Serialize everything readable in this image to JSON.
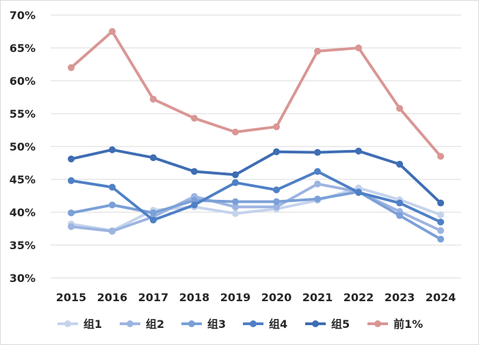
{
  "chart_data": {
    "type": "line",
    "title": "",
    "xlabel": "",
    "ylabel": "",
    "x": [
      "2015",
      "2016",
      "2017",
      "2018",
      "2019",
      "2020",
      "2021",
      "2022",
      "2023",
      "2024"
    ],
    "ylim": [
      0.3,
      0.7
    ],
    "y_ticks": [
      "30%",
      "35%",
      "40%",
      "45%",
      "50%",
      "55%",
      "60%",
      "65%",
      "70%"
    ],
    "grid": true,
    "legend_position": "bottom",
    "series": [
      {
        "name": "组1",
        "color": "#c5d3ec",
        "values": [
          0.382,
          0.372,
          0.403,
          0.408,
          0.398,
          0.405,
          0.418,
          0.437,
          0.419,
          0.396
        ]
      },
      {
        "name": "组2",
        "color": "#9db4e1",
        "values": [
          0.378,
          0.371,
          0.393,
          0.424,
          0.408,
          0.408,
          0.443,
          0.431,
          0.401,
          0.372
        ]
      },
      {
        "name": "组3",
        "color": "#7ba0d8",
        "values": [
          0.399,
          0.411,
          0.399,
          0.418,
          0.416,
          0.416,
          0.42,
          0.431,
          0.395,
          0.359
        ]
      },
      {
        "name": "组4",
        "color": "#4f80c6",
        "values": [
          0.448,
          0.438,
          0.388,
          0.411,
          0.445,
          0.434,
          0.462,
          0.43,
          0.414,
          0.385
        ]
      },
      {
        "name": "组5",
        "color": "#3e6db3",
        "values": [
          0.481,
          0.495,
          0.483,
          0.462,
          0.457,
          0.492,
          0.491,
          0.493,
          0.473,
          0.414
        ]
      },
      {
        "name": "前1%",
        "color": "#d99694",
        "values": [
          0.62,
          0.675,
          0.572,
          0.543,
          0.522,
          0.53,
          0.645,
          0.65,
          0.558,
          0.485
        ]
      }
    ]
  }
}
